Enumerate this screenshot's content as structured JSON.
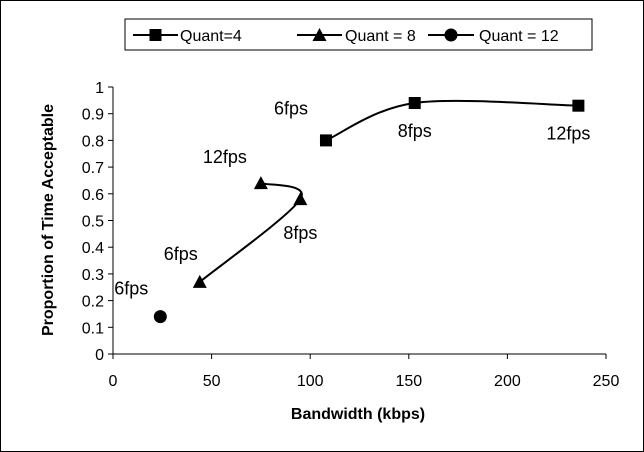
{
  "chart_data": {
    "type": "scatter",
    "title": "",
    "xlabel": "Bandwidth (kbps)",
    "ylabel": "Proportion of Time Acceptable",
    "xlim": [
      0,
      250
    ],
    "ylim": [
      0,
      1
    ],
    "xticks": [
      "0",
      "50",
      "100",
      "150",
      "200",
      "250"
    ],
    "yticks": [
      "0",
      "0.1",
      "0.2",
      "0.3",
      "0.4",
      "0.5",
      "0.6",
      "0.7",
      "0.8",
      "0.9",
      "1"
    ],
    "grid": false,
    "legend": "top",
    "series": [
      {
        "name": "Quant=4",
        "marker": "square",
        "points": [
          {
            "x": 108,
            "y": 0.8,
            "label": "6fps"
          },
          {
            "x": 153,
            "y": 0.94,
            "label": "8fps"
          },
          {
            "x": 236,
            "y": 0.93,
            "label": "12fps"
          }
        ]
      },
      {
        "name": "Quant = 8",
        "marker": "triangle",
        "points": [
          {
            "x": 44,
            "y": 0.27,
            "label": "6fps"
          },
          {
            "x": 95,
            "y": 0.58,
            "label": "8fps"
          },
          {
            "x": 75,
            "y": 0.64,
            "label": "12fps"
          }
        ]
      },
      {
        "name": "Quant = 12",
        "marker": "circle",
        "points": [
          {
            "x": 24,
            "y": 0.14,
            "label": "6fps"
          }
        ]
      }
    ],
    "colors": {
      "line": "#000000",
      "marker": "#000000",
      "background": "#ffffff"
    }
  }
}
